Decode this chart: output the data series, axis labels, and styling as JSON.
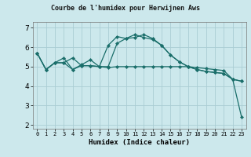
{
  "title": "Courbe de l'humidex pour Herwijnen Aws",
  "xlabel": "Humidex (Indice chaleur)",
  "bg_color": "#cce8ec",
  "grid_color": "#aacdd4",
  "line_color": "#1a6e6a",
  "x_ticks": [
    0,
    1,
    2,
    3,
    4,
    5,
    6,
    7,
    8,
    9,
    10,
    11,
    12,
    13,
    14,
    15,
    16,
    17,
    18,
    19,
    20,
    21,
    22,
    23
  ],
  "y_ticks": [
    2,
    3,
    4,
    5,
    6,
    7
  ],
  "ylim": [
    1.8,
    7.3
  ],
  "xlim": [
    -0.5,
    23.5
  ],
  "series": [
    {
      "x": [
        0,
        1,
        2,
        3,
        4,
        5,
        6,
        7,
        8,
        9,
        10,
        11,
        12,
        13,
        14,
        15,
        16,
        17,
        18,
        19,
        20,
        21,
        22,
        23
      ],
      "y": [
        5.7,
        4.85,
        5.2,
        5.2,
        4.85,
        5.05,
        5.05,
        5.0,
        5.0,
        6.2,
        6.45,
        6.5,
        6.65,
        6.45,
        6.1,
        5.6,
        5.25,
        5.0,
        4.85,
        4.75,
        4.7,
        4.65,
        4.35,
        4.25
      ]
    },
    {
      "x": [
        0,
        1,
        2,
        3,
        4,
        5,
        6,
        7,
        8,
        9,
        10,
        11,
        12,
        13,
        14,
        15,
        16,
        17,
        18,
        19,
        20,
        21,
        22,
        23
      ],
      "y": [
        5.7,
        4.85,
        5.2,
        5.45,
        4.85,
        5.1,
        5.35,
        5.0,
        4.95,
        5.0,
        5.0,
        5.0,
        5.0,
        5.0,
        5.0,
        5.0,
        5.0,
        5.0,
        4.95,
        4.9,
        4.85,
        4.8,
        4.35,
        2.4
      ]
    },
    {
      "x": [
        0,
        1,
        2,
        3,
        4,
        5,
        6,
        7,
        8,
        9,
        10,
        11,
        12,
        13,
        14,
        15,
        16,
        17,
        18,
        19,
        20,
        21,
        22,
        23
      ],
      "y": [
        5.7,
        4.85,
        5.2,
        5.2,
        5.45,
        5.05,
        5.05,
        5.0,
        6.1,
        6.55,
        6.45,
        6.65,
        6.5,
        6.4,
        6.1,
        5.6,
        5.25,
        5.0,
        4.85,
        4.75,
        4.7,
        4.65,
        4.35,
        4.25
      ]
    }
  ]
}
